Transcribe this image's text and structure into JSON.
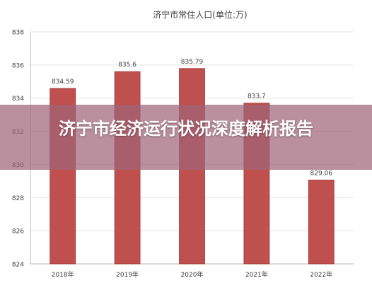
{
  "chart_data": {
    "type": "bar",
    "title": "济宁市常住人口(单位:万)",
    "categories": [
      "2018年",
      "2019年",
      "2020年",
      "2021年",
      "2022年"
    ],
    "values": [
      834.59,
      835.6,
      835.79,
      833.7,
      829.06
    ],
    "value_labels": [
      "834.59",
      "835.6",
      "835.79",
      "833.7",
      "829.06"
    ],
    "ylim": [
      824,
      838
    ],
    "yticks": [
      824,
      826,
      828,
      830,
      832,
      834,
      836,
      838
    ],
    "grid": true,
    "colors": {
      "bar": "#c0504d",
      "bar_edge": "#9a3b38",
      "axis": "#b8b8b8",
      "text": "#404040"
    }
  },
  "overlay": {
    "title": "济宁市经济运行状况深度解析报告"
  }
}
